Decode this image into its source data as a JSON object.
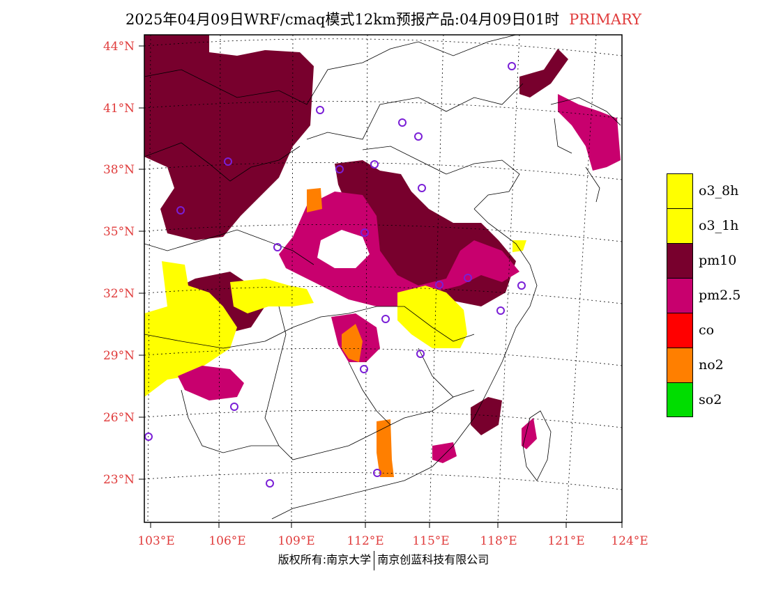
{
  "title": {
    "main": "2025年04月09日WRF/cmaq模式12km预报产品:04月09日01时",
    "badge": "PRIMARY"
  },
  "map": {
    "lat_ticks": [
      "44°N",
      "41°N",
      "38°N",
      "35°N",
      "32°N",
      "29°N",
      "26°N",
      "23°N"
    ],
    "lon_ticks": [
      "103°E",
      "106°E",
      "109°E",
      "112°E",
      "115°E",
      "118°E",
      "121°E",
      "124°E"
    ],
    "colors": {
      "pm10": "#78002d",
      "pm25": "#c8006e",
      "o3": "#ffff00",
      "no2": "#ff7f00",
      "station": "#7a1fd6",
      "tick_text": "#e03c3c"
    }
  },
  "legend": {
    "items": [
      {
        "label": "o3_8h",
        "color": "#ffff00"
      },
      {
        "label": "o3_1h",
        "color": "#ffff00"
      },
      {
        "label": "pm10",
        "color": "#78002d"
      },
      {
        "label": "pm2.5",
        "color": "#c8006e"
      },
      {
        "label": "co",
        "color": "#ff0000"
      },
      {
        "label": "no2",
        "color": "#ff7f00"
      },
      {
        "label": "so2",
        "color": "#00dd00"
      }
    ]
  },
  "footer": {
    "left": "版权所有:南京大学",
    "right": "南京创蓝科技有限公司"
  }
}
